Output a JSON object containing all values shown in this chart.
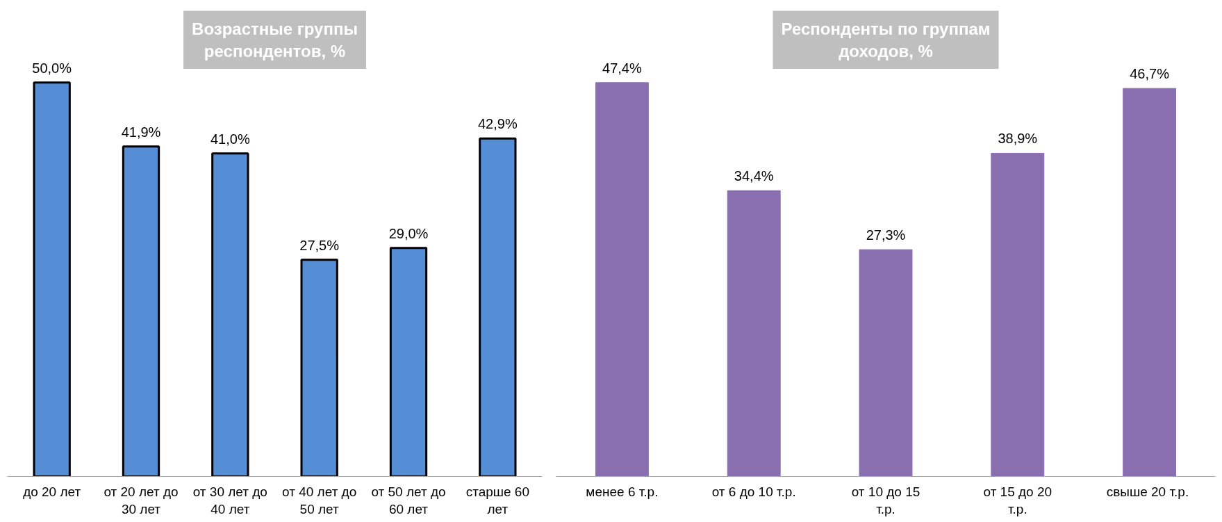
{
  "chart_data": [
    {
      "type": "bar",
      "title": "Возрастные группы респондентов, %",
      "categories": [
        "до 20 лет",
        "от 20 лет до 30 лет",
        "от 30 лет до 40 лет",
        "от 40 лет до 50 лет",
        "от 50 лет до 60 лет",
        "старше 60 лет"
      ],
      "values": [
        50.0,
        41.9,
        41.0,
        27.5,
        29.0,
        42.9
      ],
      "color": "#558ed5",
      "value_labels": [
        "50,0%",
        "41,9%",
        "41,0%",
        "27,5%",
        "29,0%",
        "42,9%"
      ],
      "grid": false
    },
    {
      "type": "bar",
      "title": "Респонденты по группам доходов, %",
      "categories": [
        "менее 6 т.р.",
        "от 6 до 10 т.р.",
        "от 10 до 15 т.р.",
        "от 15 до 20 т.р.",
        "свыше 20  т.р."
      ],
      "values": [
        47.4,
        34.4,
        27.3,
        38.9,
        46.7
      ],
      "color": "#8a6fb0",
      "value_labels": [
        "47,4%",
        "34,4%",
        "27,3%",
        "38,9%",
        "46,7%"
      ],
      "grid": false
    }
  ]
}
